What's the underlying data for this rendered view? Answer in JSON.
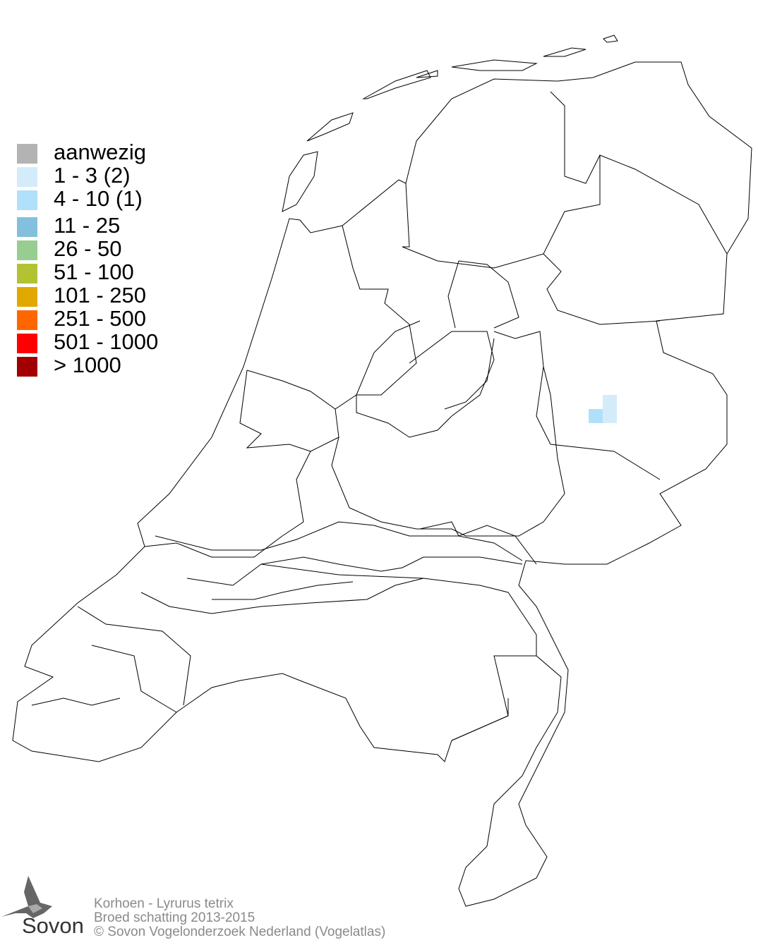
{
  "legend": {
    "items": [
      {
        "label": "aanwezig",
        "color": "#b3b3b3"
      },
      {
        "label": "1 - 3 (2)",
        "color": "#d4ecfa"
      },
      {
        "label": "4 - 10 (1)",
        "color": "#b0e0fa"
      },
      {
        "label": "11 - 25",
        "color": "#83c0dd"
      },
      {
        "label": "26 - 50",
        "color": "#98cd92"
      },
      {
        "label": "51 - 100",
        "color": "#b2c231"
      },
      {
        "label": "101 - 250",
        "color": "#e1a900"
      },
      {
        "label": "251 - 500",
        "color": "#ff6600"
      },
      {
        "label": "501 - 1000",
        "color": "#ff0000"
      },
      {
        "label": "> 1000",
        "color": "#a20000"
      }
    ]
  },
  "map_cells": [
    {
      "category": "1 - 3 (2)",
      "color": "#d4ecfa",
      "count": 2
    },
    {
      "category": "4 - 10 (1)",
      "color": "#b0e0fa",
      "count": 1
    }
  ],
  "footer": {
    "species": "Korhoen - Lyrurus tetrix",
    "subtitle": "Broed schatting 2013-2015",
    "copyright": "© Sovon Vogelonderzoek Nederland (Vogelatlas)"
  },
  "logo": {
    "text": "Sovon"
  }
}
